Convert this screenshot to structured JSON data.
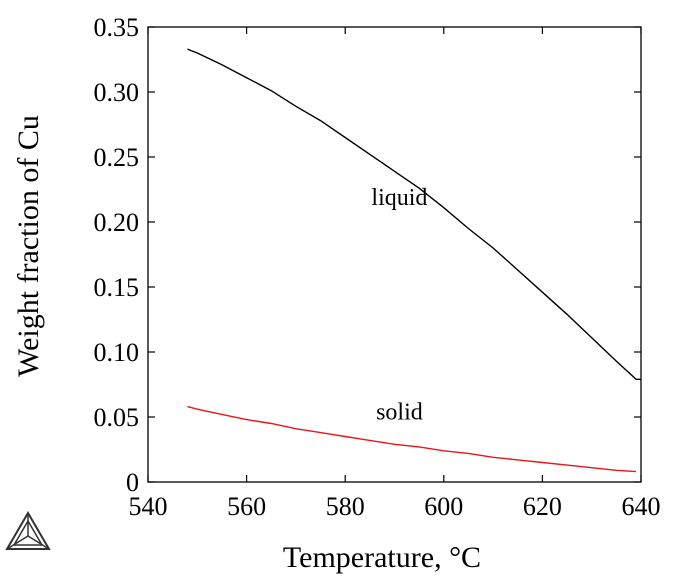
{
  "chart_data": {
    "type": "line",
    "xlabel": "Temperature, °C",
    "ylabel": "Weight fraction of Cu",
    "xlim": [
      540,
      640
    ],
    "ylim": [
      0,
      0.35
    ],
    "x_ticks": [
      "540",
      "560",
      "580",
      "600",
      "620",
      "640"
    ],
    "y_ticks": [
      "0",
      "0.05",
      "0.10",
      "0.15",
      "0.20",
      "0.25",
      "0.30",
      "0.35"
    ],
    "grid": false,
    "series": [
      {
        "name": "liquid",
        "color": "#000000",
        "x": [
          548,
          550,
          555,
          560,
          565,
          570,
          575,
          580,
          585,
          590,
          595,
          600,
          605,
          610,
          615,
          620,
          625,
          630,
          635,
          639,
          640
        ],
        "y": [
          0.333,
          0.33,
          0.321,
          0.311,
          0.301,
          0.289,
          0.278,
          0.265,
          0.252,
          0.239,
          0.226,
          0.211,
          0.195,
          0.18,
          0.163,
          0.146,
          0.129,
          0.111,
          0.093,
          0.079,
          0.079
        ]
      },
      {
        "name": "solid",
        "color": "#e8161b",
        "x": [
          548,
          550,
          555,
          560,
          565,
          570,
          575,
          580,
          585,
          590,
          595,
          600,
          605,
          610,
          615,
          620,
          625,
          630,
          635,
          639
        ],
        "y": [
          0.058,
          0.056,
          0.052,
          0.048,
          0.045,
          0.041,
          0.038,
          0.035,
          0.032,
          0.029,
          0.027,
          0.024,
          0.022,
          0.019,
          0.017,
          0.015,
          0.013,
          0.011,
          0.009,
          0.008
        ]
      }
    ],
    "annotations": [
      {
        "text": "liquid",
        "x": 591,
        "y": 0.213
      },
      {
        "text": "solid",
        "x": 591,
        "y": 0.048
      }
    ],
    "logo": "thermocalc-triangle-icon"
  }
}
